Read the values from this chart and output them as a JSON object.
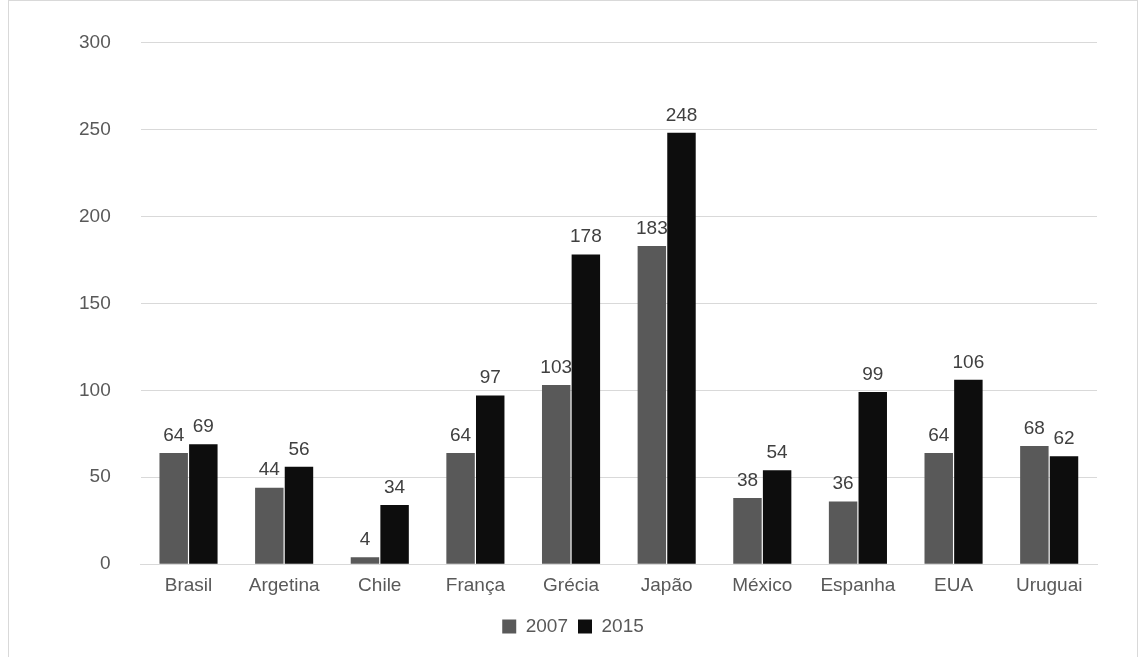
{
  "chart_data": {
    "type": "bar",
    "categories": [
      "Brasil",
      "Argetina",
      "Chile",
      "França",
      "Grécia",
      "Japão",
      "México",
      "Espanha",
      "EUA",
      "Uruguai"
    ],
    "series": [
      {
        "name": "2007",
        "color": "#595959",
        "values": [
          64,
          44,
          4,
          64,
          103,
          183,
          38,
          36,
          64,
          68
        ]
      },
      {
        "name": "2015",
        "color": "#0d0d0d",
        "values": [
          69,
          56,
          34,
          97,
          178,
          248,
          54,
          99,
          106,
          62
        ]
      }
    ],
    "ylim": [
      0,
      300
    ],
    "yticks": [
      0,
      50,
      100,
      150,
      200,
      250,
      300
    ],
    "grid": "y",
    "legend": "bottom",
    "data_labels": true
  }
}
